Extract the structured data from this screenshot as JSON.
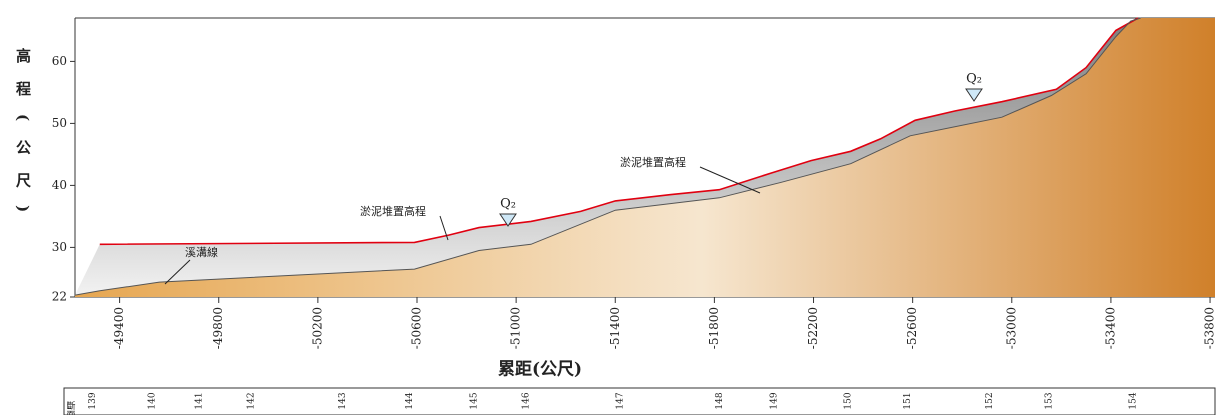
{
  "chart_data": {
    "type": "line",
    "xlabel": "累距(公尺)",
    "ylabel": "高程(公尺)",
    "xlim": [
      -49220,
      -53820
    ],
    "xticks": [
      -49400,
      -49800,
      -50200,
      -50600,
      -51000,
      -51400,
      -51800,
      -52200,
      -52600,
      -53000,
      -53400,
      -53800
    ],
    "ylim": [
      22,
      67
    ],
    "yticks": [
      22,
      30,
      40,
      50,
      60
    ],
    "series": [
      {
        "name": "淤泥堆置高程",
        "color": "#e00010",
        "x": [
          -49320,
          -50590,
          -50730,
          -50850,
          -51060,
          -51260,
          -51400,
          -51620,
          -51820,
          -52030,
          -52190,
          -52350,
          -52470,
          -52610,
          -52770,
          -52960,
          -53180,
          -53300,
          -53420,
          -53510
        ],
        "values": [
          30.5,
          30.8,
          32,
          33.2,
          34.2,
          35.8,
          37.5,
          38.5,
          39.3,
          42,
          44,
          45.5,
          47.5,
          50.5,
          52,
          53.5,
          55.5,
          59,
          65,
          67
        ]
      },
      {
        "name": "溪溝線",
        "color": "#555555",
        "x": [
          -49220,
          -49320,
          -49560,
          -50590,
          -50850,
          -51060,
          -51400,
          -51820,
          -52070,
          -52350,
          -52590,
          -52960,
          -53160,
          -53300,
          -53420,
          -53480,
          -53520
        ],
        "values": [
          22.3,
          23,
          24.4,
          26.5,
          29.5,
          30.5,
          36,
          38,
          40.5,
          43.5,
          48,
          51,
          54.5,
          58,
          64,
          66.5,
          67
        ]
      }
    ],
    "annotations": [
      "Q₂",
      "Q₂"
    ],
    "section_title": "斷面",
    "sections": [
      {
        "label": "139",
        "x": -49290
      },
      {
        "label": "140",
        "x": -49530
      },
      {
        "label": "141",
        "x": -49720
      },
      {
        "label": "142",
        "x": -49930
      },
      {
        "label": "143",
        "x": -50300
      },
      {
        "label": "144",
        "x": -50570
      },
      {
        "label": "145",
        "x": -50830
      },
      {
        "label": "146",
        "x": -51040
      },
      {
        "label": "147",
        "x": -51420
      },
      {
        "label": "148",
        "x": -51820
      },
      {
        "label": "149",
        "x": -52040
      },
      {
        "label": "150",
        "x": -52340
      },
      {
        "label": "151",
        "x": -52580
      },
      {
        "label": "152",
        "x": -52910
      },
      {
        "label": "153",
        "x": -53150
      },
      {
        "label": "154",
        "x": -53490
      }
    ]
  }
}
